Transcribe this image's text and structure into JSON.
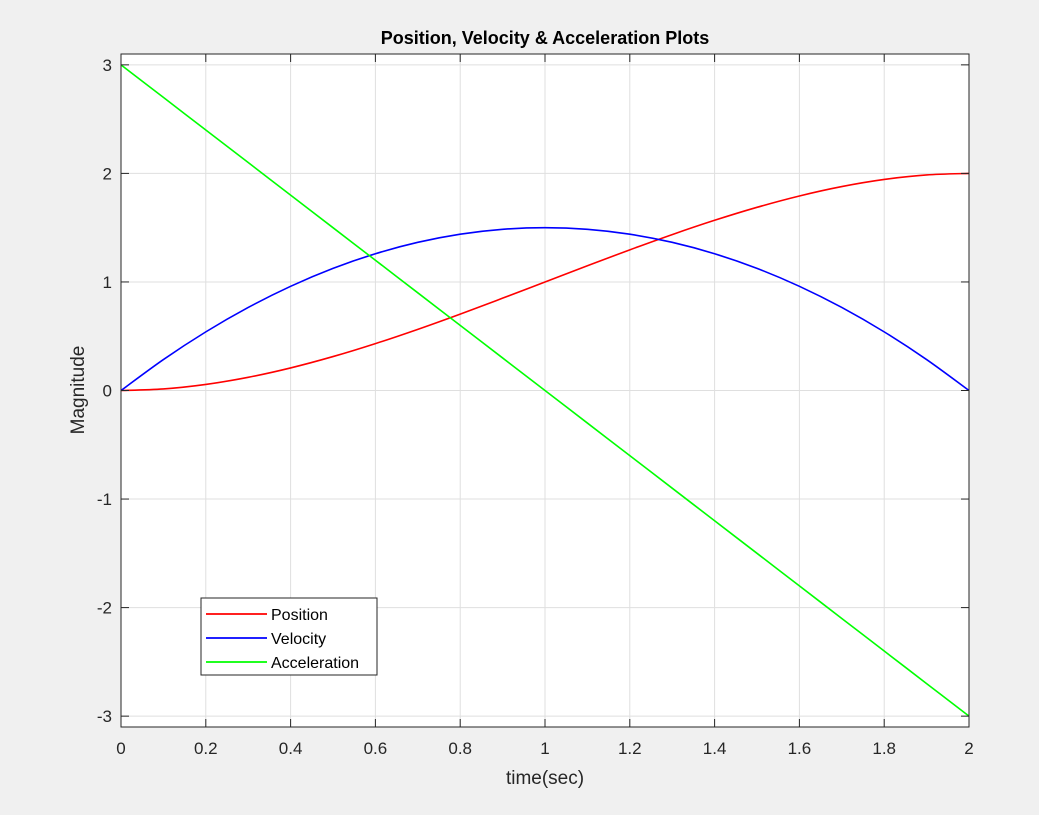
{
  "figure": {
    "background": "#f0f0f0",
    "axes_background": "#ffffff"
  },
  "chart_data": {
    "type": "line",
    "title": "Position, Velocity & Acceleration Plots",
    "xlabel": "time(sec)",
    "ylabel": "Magnitude",
    "xlim": [
      0,
      2
    ],
    "ylim": [
      -3.1,
      3.1
    ],
    "xticks": [
      0,
      0.2,
      0.4,
      0.6,
      0.8,
      1,
      1.2,
      1.4,
      1.6,
      1.8,
      2
    ],
    "xtick_labels": [
      "0",
      "0.2",
      "0.4",
      "0.6",
      "0.8",
      "1",
      "1.2",
      "1.4",
      "1.6",
      "1.8",
      "2"
    ],
    "yticks": [
      -3,
      -2,
      -1,
      0,
      1,
      2,
      3
    ],
    "ytick_labels": [
      "-3",
      "-2",
      "-1",
      "0",
      "1",
      "2",
      "3"
    ],
    "grid": true,
    "legend_position": "bottom-left",
    "x": [
      0,
      0.1,
      0.2,
      0.3,
      0.4,
      0.5,
      0.6,
      0.7,
      0.8,
      0.9,
      1.0,
      1.1,
      1.2,
      1.3,
      1.4,
      1.5,
      1.6,
      1.7,
      1.8,
      1.9,
      2.0
    ],
    "series": [
      {
        "name": "Position",
        "color": "#ff0000",
        "values": [
          0,
          0.0145,
          0.056,
          0.1215,
          0.208,
          0.3125,
          0.432,
          0.5635,
          0.704,
          0.8505,
          1.0,
          1.1495,
          1.296,
          1.4365,
          1.568,
          1.6875,
          1.792,
          1.8785,
          1.944,
          1.9855,
          2.0
        ]
      },
      {
        "name": "Velocity",
        "color": "#0000ff",
        "values": [
          0,
          0.285,
          0.54,
          0.765,
          0.96,
          1.125,
          1.26,
          1.365,
          1.44,
          1.485,
          1.5,
          1.485,
          1.44,
          1.365,
          1.26,
          1.125,
          0.96,
          0.765,
          0.54,
          0.285,
          0
        ]
      },
      {
        "name": "Acceleration",
        "color": "#00ff00",
        "values": [
          3.0,
          2.7,
          2.4,
          2.1,
          1.8,
          1.5,
          1.2,
          0.9,
          0.6,
          0.3,
          0,
          -0.3,
          -0.6,
          -0.9,
          -1.2,
          -1.5,
          -1.8,
          -2.1,
          -2.4,
          -2.7,
          -3.0
        ]
      }
    ]
  }
}
